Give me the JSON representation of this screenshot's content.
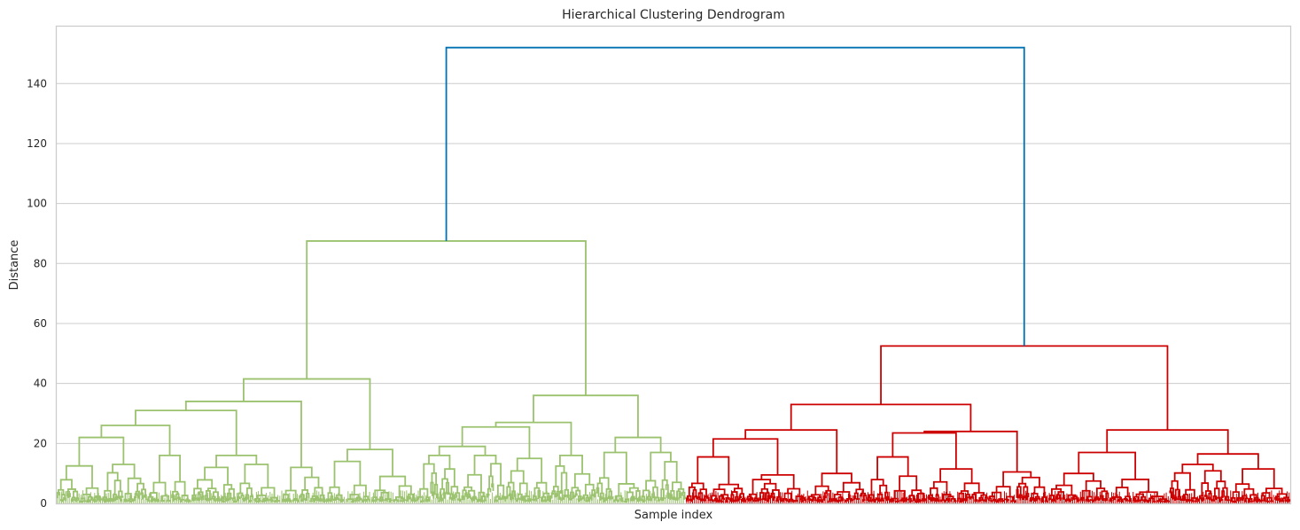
{
  "chart_data": {
    "type": "dendrogram",
    "title": "Hierarchical Clustering Dendrogram",
    "xlabel": "Sample index",
    "ylabel": "Distance",
    "ylim": [
      0,
      159
    ],
    "yticks": [
      0,
      20,
      40,
      60,
      80,
      100,
      120,
      140
    ],
    "grid": "horizontal",
    "colors": {
      "cluster_1": "#9bc26e",
      "cluster_2": "#cc0000",
      "above_threshold": "#0072b2",
      "grid": "#cccccc"
    },
    "clusters": [
      {
        "key": "cluster_1",
        "color": "#9bc26e",
        "leaf_share": 0.51
      },
      {
        "key": "cluster_2",
        "color": "#cc0000",
        "leaf_share": 0.49
      }
    ],
    "merges": [
      {
        "id": "root",
        "height": 152,
        "children": [
          "A",
          "B"
        ],
        "color": "#0072b2"
      },
      {
        "id": "A",
        "height": 87.5,
        "children": [
          "A1",
          "A2"
        ],
        "color": "#9bc26e"
      },
      {
        "id": "A1",
        "height": 41.5,
        "children": [
          "A1a",
          "A1b"
        ],
        "color": "#9bc26e"
      },
      {
        "id": "A1a",
        "height": 34,
        "children": [
          "A1a1",
          "A1a2"
        ],
        "color": "#9bc26e"
      },
      {
        "id": "A1a1",
        "height": 31,
        "children": [
          "A1a1a",
          "A1a1b"
        ],
        "color": "#9bc26e"
      },
      {
        "id": "A1a1a",
        "height": 26,
        "children": [
          "A1a1a1",
          "A1a1a2"
        ],
        "color": "#9bc26e"
      },
      {
        "id": "A1a1a1",
        "height": 22,
        "children": [
          "A1a1a1a",
          "A1a1a1b"
        ],
        "color": "#9bc26e"
      },
      {
        "id": "A1a1a1a",
        "height": 12.5,
        "children": [],
        "color": "#9bc26e"
      },
      {
        "id": "A1a1a1b",
        "height": 13,
        "children": [],
        "color": "#9bc26e"
      },
      {
        "id": "A1a1a2",
        "height": 16,
        "children": [],
        "color": "#9bc26e"
      },
      {
        "id": "A1a1b",
        "height": 16,
        "children": [
          "A1a1b1",
          "A1a1b2"
        ],
        "color": "#9bc26e"
      },
      {
        "id": "A1a1b1",
        "height": 12,
        "children": [],
        "color": "#9bc26e"
      },
      {
        "id": "A1a1b2",
        "height": 13,
        "children": [],
        "color": "#9bc26e"
      },
      {
        "id": "A1a2",
        "height": 12,
        "children": [],
        "color": "#9bc26e"
      },
      {
        "id": "A1b",
        "height": 18,
        "children": [
          "A1b1",
          "A1b2"
        ],
        "color": "#9bc26e"
      },
      {
        "id": "A1b1",
        "height": 14,
        "children": [],
        "color": "#9bc26e"
      },
      {
        "id": "A1b2",
        "height": 9,
        "children": [],
        "color": "#9bc26e"
      },
      {
        "id": "A2",
        "height": 36,
        "children": [
          "A2a",
          "A2b"
        ],
        "color": "#9bc26e"
      },
      {
        "id": "A2a",
        "height": 27,
        "children": [
          "A2a1",
          "A2a2"
        ],
        "color": "#9bc26e"
      },
      {
        "id": "A2a1",
        "height": 25.5,
        "children": [
          "A2a1a",
          "A2a1b"
        ],
        "color": "#9bc26e"
      },
      {
        "id": "A2a1a",
        "height": 19,
        "children": [
          "A2a1a1",
          "A2a1a2"
        ],
        "color": "#9bc26e"
      },
      {
        "id": "A2a1a1",
        "height": 16,
        "children": [],
        "color": "#9bc26e"
      },
      {
        "id": "A2a1a2",
        "height": 16,
        "children": [],
        "color": "#9bc26e"
      },
      {
        "id": "A2a1b",
        "height": 15,
        "children": [],
        "color": "#9bc26e"
      },
      {
        "id": "A2a2",
        "height": 16,
        "children": [],
        "color": "#9bc26e"
      },
      {
        "id": "A2b",
        "height": 22,
        "children": [
          "A2b1",
          "A2b2"
        ],
        "color": "#9bc26e"
      },
      {
        "id": "A2b1",
        "height": 17,
        "children": [],
        "color": "#9bc26e"
      },
      {
        "id": "A2b2",
        "height": 17,
        "children": [],
        "color": "#9bc26e"
      },
      {
        "id": "B",
        "height": 52.5,
        "children": [
          "B1",
          "B2"
        ],
        "color": "#cc0000"
      },
      {
        "id": "B1",
        "height": 33,
        "children": [
          "B1a",
          "B1b"
        ],
        "color": "#cc0000"
      },
      {
        "id": "B1a",
        "height": 24.5,
        "children": [
          "B1a1",
          "B1a2"
        ],
        "color": "#cc0000"
      },
      {
        "id": "B1a1",
        "height": 21.5,
        "children": [
          "B1a1a",
          "B1a1b"
        ],
        "color": "#cc0000"
      },
      {
        "id": "B1a1a",
        "height": 15.5,
        "children": [],
        "color": "#cc0000"
      },
      {
        "id": "B1a1b",
        "height": 9.5,
        "children": [],
        "color": "#cc0000"
      },
      {
        "id": "B1a2",
        "height": 10,
        "children": [],
        "color": "#cc0000"
      },
      {
        "id": "B1b",
        "height": 24,
        "children": [
          "B1b1",
          "B1b2"
        ],
        "color": "#cc0000"
      },
      {
        "id": "B1b1",
        "height": 23.5,
        "children": [
          "B1b1a",
          "B1b1b"
        ],
        "color": "#cc0000"
      },
      {
        "id": "B1b1a",
        "height": 15.5,
        "children": [],
        "color": "#cc0000"
      },
      {
        "id": "B1b1b",
        "height": 11.5,
        "children": [],
        "color": "#cc0000"
      },
      {
        "id": "B1b2",
        "height": 10.5,
        "children": [],
        "color": "#cc0000"
      },
      {
        "id": "B2",
        "height": 24.5,
        "children": [
          "B2a",
          "B2b"
        ],
        "color": "#cc0000"
      },
      {
        "id": "B2a",
        "height": 17,
        "children": [
          "B2a1",
          "B2a2"
        ],
        "color": "#cc0000"
      },
      {
        "id": "B2a1",
        "height": 10,
        "children": [],
        "color": "#cc0000"
      },
      {
        "id": "B2a2",
        "height": 8,
        "children": [],
        "color": "#cc0000"
      },
      {
        "id": "B2b",
        "height": 16.5,
        "children": [
          "B2b1",
          "B2b2"
        ],
        "color": "#cc0000"
      },
      {
        "id": "B2b1",
        "height": 13,
        "children": [],
        "color": "#cc0000"
      },
      {
        "id": "B2b2",
        "height": 11.5,
        "children": [],
        "color": "#cc0000"
      }
    ]
  }
}
